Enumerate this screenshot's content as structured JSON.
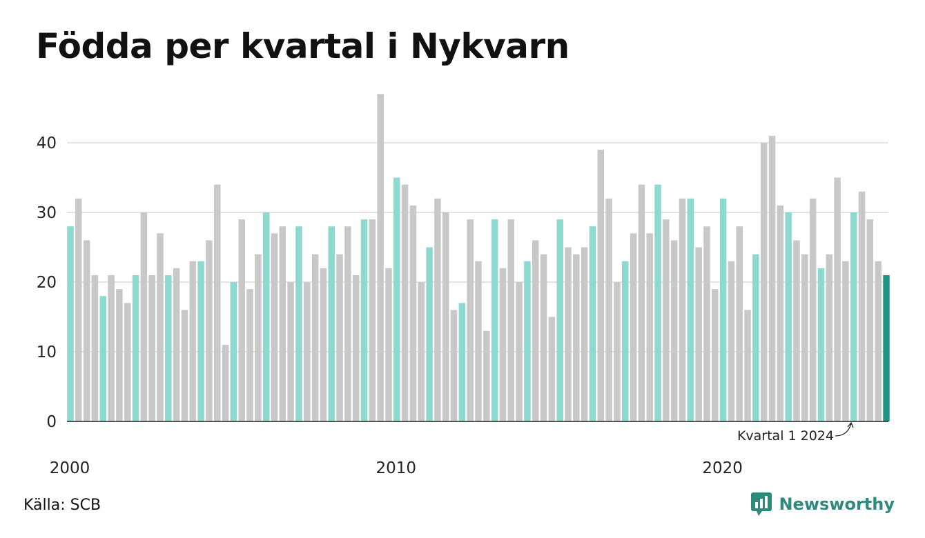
{
  "title": "Födda per kvartal i Nykvarn",
  "source": "Källa: SCB",
  "brand": "Newsworthy",
  "colors": {
    "q1": "#8dd8cf",
    "other": "#c8c8c8",
    "highlight": "#1f9483",
    "axis": "#222222",
    "grid": "#e3e3e3"
  },
  "chart_data": {
    "type": "bar",
    "title": "Födda per kvartal i Nykvarn",
    "xlabel": "",
    "ylabel": "",
    "ylim": [
      0,
      48
    ],
    "yticks": [
      0,
      10,
      20,
      30,
      40
    ],
    "xticks": [
      "2000",
      "2010",
      "2020"
    ],
    "grid": true,
    "start": "2000 Q1",
    "values": [
      28,
      32,
      26,
      21,
      18,
      21,
      19,
      17,
      21,
      30,
      21,
      27,
      21,
      22,
      16,
      23,
      23,
      26,
      34,
      11,
      20,
      29,
      19,
      24,
      30,
      27,
      28,
      20,
      28,
      20,
      24,
      22,
      28,
      24,
      28,
      21,
      29,
      29,
      47,
      22,
      35,
      34,
      31,
      20,
      25,
      32,
      30,
      16,
      17,
      29,
      23,
      13,
      29,
      22,
      29,
      20,
      23,
      26,
      24,
      15,
      29,
      25,
      24,
      25,
      28,
      39,
      32,
      20,
      23,
      27,
      34,
      27,
      34,
      29,
      26,
      32,
      32,
      25,
      28,
      19,
      32,
      23,
      28,
      16,
      24,
      40,
      41,
      31,
      30,
      26,
      24,
      32,
      22,
      24,
      35,
      23,
      30,
      33,
      29,
      23,
      21
    ],
    "annotation": "Kvartal 1 2024"
  }
}
